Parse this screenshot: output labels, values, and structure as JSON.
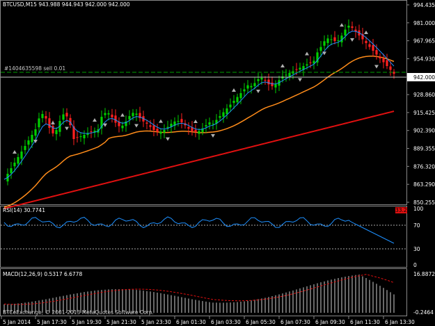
{
  "symbol_line": "BTCUSD,M15  943.988 944.943 942.000 942.000",
  "order_label": "#1404635598 sell 0.01",
  "current_price_label": "942.000",
  "price_axis_ticks": [
    "994.435",
    "981.000",
    "967.965",
    "954.930",
    "942.000",
    "928.860",
    "915.425",
    "902.390",
    "889.355",
    "876.320",
    "863.290",
    "850.255"
  ],
  "rsi": {
    "title": "RSI(14) 30.7741",
    "corner_label": "33.267",
    "levels": [
      70,
      30
    ],
    "axis_ticks": [
      "100",
      "70",
      "30",
      "0"
    ]
  },
  "macd": {
    "title": "MACD(12,26,9) 0.5317 6.6778",
    "axis_ticks": [
      "16.8872",
      "-0.2464"
    ],
    "copyright": "BTCeExchange, © 2001-2013 MetaQuotes Software Corp."
  },
  "time_axis": [
    "5 Jan 2014",
    "5 Jan 17:30",
    "5 Jan 19:30",
    "5 Jan 21:30",
    "5 Jan 23:30",
    "6 Jan 01:30",
    "6 Jan 03:30",
    "6 Jan 05:30",
    "6 Jan 07:30",
    "6 Jan 09:30",
    "6 Jan 11:30",
    "6 Jan 13:30"
  ],
  "colors": {
    "background": "#000000",
    "bull_candle": "#00d000",
    "bear_candle": "#ff2020",
    "ma_fast": "#1e90ff",
    "ma_mid": "#ff8c1a",
    "ma_slow": "#e01010",
    "rsi_line": "#1e90ff",
    "macd_signal": "#e01010",
    "order_line": "#00a000"
  }
}
